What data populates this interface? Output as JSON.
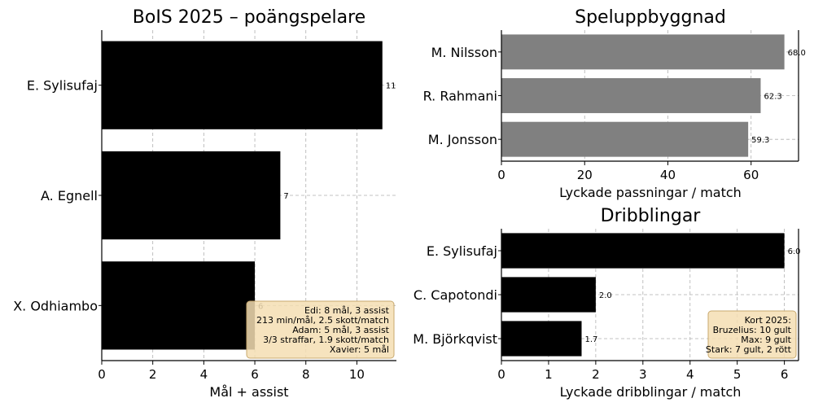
{
  "chart_data": [
    {
      "id": "points",
      "type": "bar",
      "orientation": "horizontal",
      "title": "BoIS 2025 – poängspelare",
      "xlabel": "Mål + assist",
      "ylabel": "",
      "categories": [
        "E. Sylisufaj",
        "A. Egnell",
        "X. Odhiambo"
      ],
      "values": [
        11,
        7,
        6
      ],
      "value_labels": [
        "11",
        "7",
        "6"
      ],
      "xlim": [
        0,
        11.55
      ],
      "xticks": [
        0,
        2,
        4,
        6,
        8,
        10
      ],
      "bar_color": "#000000",
      "grid": true,
      "annotation": {
        "lines": [
          "Edi: 8 mål, 3 assist",
          "213 min/mål, 2.5 skott/match",
          "Adam: 5 mål, 3 assist",
          "3/3 straffar, 1.9 skott/match",
          "Xavier: 5 mål"
        ],
        "placement": "bottom-right"
      }
    },
    {
      "id": "buildup",
      "type": "bar",
      "orientation": "horizontal",
      "title": "Speluppbyggnad",
      "xlabel": "Lyckade passningar / match",
      "ylabel": "",
      "categories": [
        "M. Nilsson",
        "R. Rahmani",
        "M. Jonsson"
      ],
      "values": [
        68.0,
        62.3,
        59.3
      ],
      "value_labels": [
        "68.0",
        "62.3",
        "59.3"
      ],
      "xlim": [
        0,
        71.4
      ],
      "xticks": [
        0,
        20,
        40,
        60
      ],
      "bar_color": "#808080",
      "grid": true
    },
    {
      "id": "dribbles",
      "type": "bar",
      "orientation": "horizontal",
      "title": "Dribblingar",
      "xlabel": "Lyckade dribblingar / match",
      "ylabel": "",
      "categories": [
        "E. Sylisufaj",
        "C. Capotondi",
        "M. Björkqvist"
      ],
      "values": [
        6.0,
        2.0,
        1.7
      ],
      "value_labels": [
        "6.0",
        "2.0",
        "1.7"
      ],
      "xlim": [
        0,
        6.3
      ],
      "xticks": [
        0,
        1,
        2,
        3,
        4,
        5,
        6
      ],
      "bar_color": "#000000",
      "grid": true,
      "annotation": {
        "lines": [
          "Kort 2025:",
          "Bruzelius: 10 gult",
          "Max: 9 gult",
          "Stark: 7 gult, 2 rött"
        ],
        "placement": "bottom-right"
      }
    }
  ],
  "colors": {
    "annotation_bg": "#f5deb3",
    "annotation_border": "#c8a96e",
    "grid": "#b0b0b0"
  }
}
